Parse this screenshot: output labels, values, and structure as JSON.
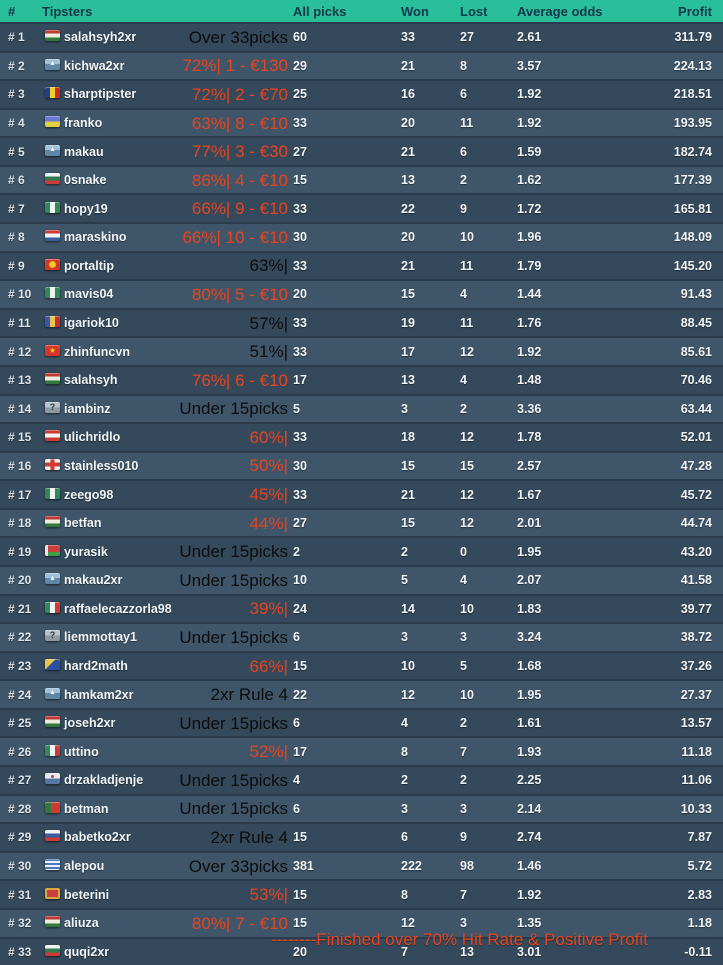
{
  "table": {
    "headers": {
      "rank": "#",
      "tipsters": "Tipsters",
      "all_picks": "All picks",
      "won": "Won",
      "lost": "Lost",
      "average_odds": "Average odds",
      "profit": "Profit"
    },
    "rows": [
      {
        "rank": "# 1",
        "icon": "flag-hungary",
        "name": "salahsyh2xr",
        "status": "Over 33picks",
        "status_style": "dark",
        "picks": "60",
        "won": "33",
        "lost": "27",
        "odds": "2.61",
        "profit": "311.79"
      },
      {
        "rank": "# 2",
        "icon": "avatar-mountain",
        "name": "kichwa2xr",
        "status": "72%| 1 - €130",
        "status_style": "hot",
        "picks": "29",
        "won": "21",
        "lost": "8",
        "odds": "3.57",
        "profit": "224.13"
      },
      {
        "rank": "# 3",
        "icon": "flag-romania",
        "name": "sharptipster",
        "status": "72%| 2 - €70",
        "status_style": "hot",
        "picks": "25",
        "won": "16",
        "lost": "6",
        "odds": "1.92",
        "profit": "218.51"
      },
      {
        "rank": "# 4",
        "icon": "flag-ukraine",
        "name": "franko",
        "status": "63%| 8 - €10",
        "status_style": "hot",
        "picks": "33",
        "won": "20",
        "lost": "11",
        "odds": "1.92",
        "profit": "193.95"
      },
      {
        "rank": "# 5",
        "icon": "avatar-mountain",
        "name": "makau",
        "status": "77%| 3 - €30",
        "status_style": "hot",
        "picks": "27",
        "won": "21",
        "lost": "6",
        "odds": "1.59",
        "profit": "182.74"
      },
      {
        "rank": "# 6",
        "icon": "flag-bulgaria",
        "name": "0snake",
        "status": "86%| 4 - €10",
        "status_style": "hot",
        "picks": "15",
        "won": "13",
        "lost": "2",
        "odds": "1.62",
        "profit": "177.39"
      },
      {
        "rank": "# 7",
        "icon": "flag-nigeria",
        "name": "hopy19",
        "status": "66%| 9 - €10",
        "status_style": "hot",
        "picks": "33",
        "won": "22",
        "lost": "9",
        "odds": "1.72",
        "profit": "165.81"
      },
      {
        "rank": "# 8",
        "icon": "flag-croatia",
        "name": "maraskino",
        "status": "66%| 10 - €10",
        "status_style": "hot",
        "picks": "30",
        "won": "20",
        "lost": "10",
        "odds": "1.96",
        "profit": "148.09"
      },
      {
        "rank": "# 9",
        "icon": "flag-macedonia",
        "name": "portaltip",
        "status": "63%|",
        "status_style": "dark",
        "picks": "33",
        "won": "21",
        "lost": "11",
        "odds": "1.79",
        "profit": "145.20"
      },
      {
        "rank": "# 10",
        "icon": "flag-nigeria",
        "name": "mavis04",
        "status": "80%| 5 - €10",
        "status_style": "hot",
        "picks": "20",
        "won": "15",
        "lost": "4",
        "odds": "1.44",
        "profit": "91.43"
      },
      {
        "rank": "# 11",
        "icon": "flag-moldova",
        "name": "igariok10",
        "status": "57%|",
        "status_style": "dark",
        "picks": "33",
        "won": "19",
        "lost": "11",
        "odds": "1.76",
        "profit": "88.45"
      },
      {
        "rank": "# 12",
        "icon": "flag-vietnam",
        "name": "zhinfuncvn",
        "status": "51%|",
        "status_style": "dark",
        "picks": "33",
        "won": "17",
        "lost": "12",
        "odds": "1.92",
        "profit": "85.61"
      },
      {
        "rank": "# 13",
        "icon": "flag-hungary",
        "name": "salahsyh",
        "status": "76%| 6 - €10",
        "status_style": "hot",
        "picks": "17",
        "won": "13",
        "lost": "4",
        "odds": "1.48",
        "profit": "70.46"
      },
      {
        "rank": "# 14",
        "icon": "avatar-question",
        "name": "iambinz",
        "status": "Under 15picks",
        "status_style": "dark",
        "picks": "5",
        "won": "3",
        "lost": "2",
        "odds": "3.36",
        "profit": "63.44"
      },
      {
        "rank": "# 15",
        "icon": "flag-austria",
        "name": "ulichridlo",
        "status": "60%|",
        "status_style": "hot",
        "picks": "33",
        "won": "18",
        "lost": "12",
        "odds": "1.78",
        "profit": "52.01"
      },
      {
        "rank": "# 16",
        "icon": "flag-england",
        "name": "stainless010",
        "status": "50%|",
        "status_style": "hot",
        "picks": "30",
        "won": "15",
        "lost": "15",
        "odds": "2.57",
        "profit": "47.28"
      },
      {
        "rank": "# 17",
        "icon": "flag-nigeria",
        "name": "zeego98",
        "status": "45%|",
        "status_style": "hot",
        "picks": "33",
        "won": "21",
        "lost": "12",
        "odds": "1.67",
        "profit": "45.72"
      },
      {
        "rank": "# 18",
        "icon": "flag-hungary",
        "name": "betfan",
        "status": "44%|",
        "status_style": "hot",
        "picks": "27",
        "won": "15",
        "lost": "12",
        "odds": "2.01",
        "profit": "44.74"
      },
      {
        "rank": "# 19",
        "icon": "flag-belarus",
        "name": "yurasik",
        "status": "Under 15picks",
        "status_style": "dark",
        "picks": "2",
        "won": "2",
        "lost": "0",
        "odds": "1.95",
        "profit": "43.20"
      },
      {
        "rank": "# 20",
        "icon": "avatar-mountain",
        "name": "makau2xr",
        "status": "Under 15picks",
        "status_style": "dark",
        "picks": "10",
        "won": "5",
        "lost": "4",
        "odds": "2.07",
        "profit": "41.58"
      },
      {
        "rank": "# 21",
        "icon": "flag-italy",
        "name": "raffaelecazzorla98",
        "status": "39%|",
        "status_style": "hot",
        "picks": "24",
        "won": "14",
        "lost": "10",
        "odds": "1.83",
        "profit": "39.77"
      },
      {
        "rank": "# 22",
        "icon": "avatar-question",
        "name": "liemmottay1",
        "status": "Under 15picks",
        "status_style": "dark",
        "picks": "6",
        "won": "3",
        "lost": "3",
        "odds": "3.24",
        "profit": "38.72"
      },
      {
        "rank": "# 23",
        "icon": "flag-bosnia",
        "name": "hard2math",
        "status": "66%|",
        "status_style": "hot",
        "picks": "15",
        "won": "10",
        "lost": "5",
        "odds": "1.68",
        "profit": "37.26"
      },
      {
        "rank": "# 24",
        "icon": "avatar-mountain",
        "name": "hamkam2xr",
        "status": "2xr Rule 4",
        "status_style": "dark",
        "picks": "22",
        "won": "12",
        "lost": "10",
        "odds": "1.95",
        "profit": "27.37"
      },
      {
        "rank": "# 25",
        "icon": "flag-hungary",
        "name": "joseh2xr",
        "status": "Under 15picks",
        "status_style": "dark",
        "picks": "6",
        "won": "4",
        "lost": "2",
        "odds": "1.61",
        "profit": "13.57"
      },
      {
        "rank": "# 26",
        "icon": "flag-italy",
        "name": "uttino",
        "status": "52%|",
        "status_style": "hot",
        "picks": "17",
        "won": "8",
        "lost": "7",
        "odds": "1.93",
        "profit": "11.18"
      },
      {
        "rank": "# 27",
        "icon": "avatar-crest",
        "name": "drzakladjenje",
        "status": "Under 15picks",
        "status_style": "dark",
        "picks": "4",
        "won": "2",
        "lost": "2",
        "odds": "2.25",
        "profit": "11.06"
      },
      {
        "rank": "# 28",
        "icon": "flag-portugal",
        "name": "betman",
        "status": "Under 15picks",
        "status_style": "dark",
        "picks": "6",
        "won": "3",
        "lost": "3",
        "odds": "2.14",
        "profit": "10.33"
      },
      {
        "rank": "# 29",
        "icon": "flag-slovakia",
        "name": "babetko2xr",
        "status": "2xr Rule 4",
        "status_style": "dark",
        "picks": "15",
        "won": "6",
        "lost": "9",
        "odds": "2.74",
        "profit": "7.87"
      },
      {
        "rank": "# 30",
        "icon": "flag-greece",
        "name": "alepou",
        "status": "Over 33picks",
        "status_style": "dark",
        "picks": "381",
        "won": "222",
        "lost": "98",
        "odds": "1.46",
        "profit": "5.72"
      },
      {
        "rank": "# 31",
        "icon": "flag-montenegro",
        "name": "beterini",
        "status": "53%|",
        "status_style": "hot",
        "picks": "15",
        "won": "8",
        "lost": "7",
        "odds": "1.92",
        "profit": "2.83"
      },
      {
        "rank": "# 32",
        "icon": "flag-hungary",
        "name": "aliuza",
        "status": "80%| 7 - €10",
        "status_style": "hot",
        "picks": "15",
        "won": "12",
        "lost": "3",
        "odds": "1.35",
        "profit": "1.18"
      },
      {
        "rank": "# 33",
        "icon": "flag-bulgaria",
        "name": "quqi2xr",
        "status": "",
        "status_style": "dark",
        "picks": "20",
        "won": "7",
        "lost": "13",
        "odds": "3.01",
        "profit": "-0.11"
      }
    ]
  },
  "note": "--------Finished over 70% Hit Rate & Positive Profit",
  "colors": {
    "header_bg": "#2abf9b",
    "header_text": "#14384a",
    "row_odd": "#34495c",
    "row_even": "#3f566a",
    "highlight_text": "#e8431c",
    "dark_status_text": "#0c0c0c",
    "value_text": "#f2f5f6"
  }
}
